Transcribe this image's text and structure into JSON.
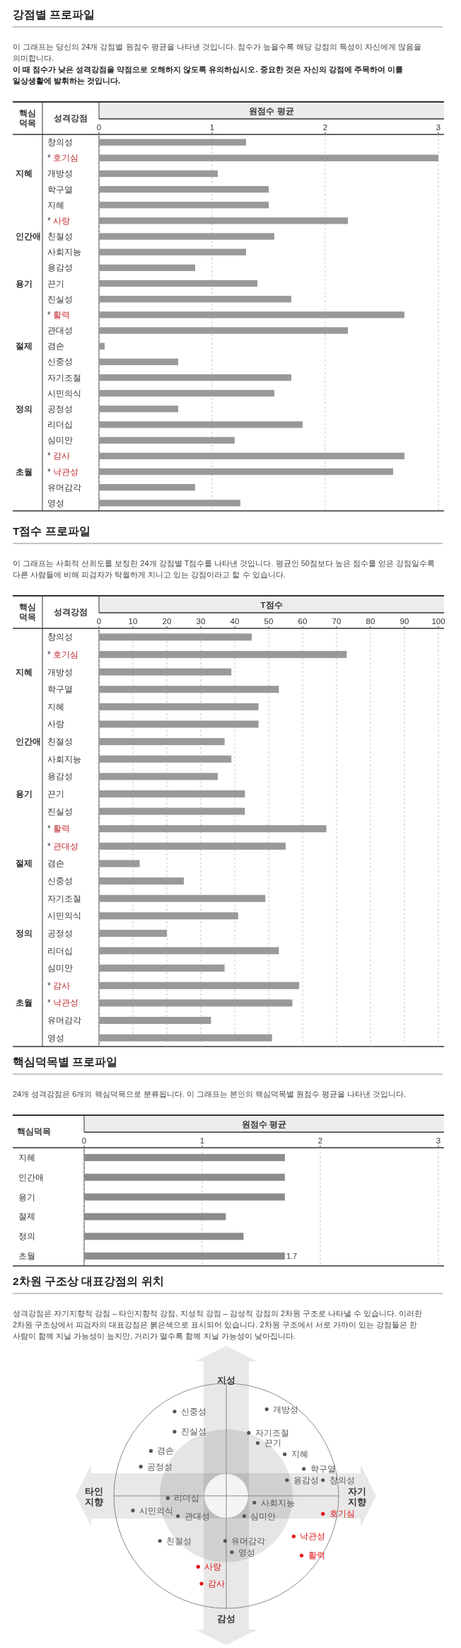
{
  "chart_data": [
    {
      "type": "bar",
      "orientation": "horizontal",
      "title": "강점별 프로파일",
      "subtitle": "이 그래프는 당신의 24개 강점별 원점수 평균을 나타낸 것입니다. 점수가 높을수록 해당 강점의 특성이 자신에게 많음을 의미합니다.",
      "annotations": [
        "이 때 점수가 낮은 성격강점을 약점으로 오해하지 않도록 유의하십시오. 중요한 것은 자신의 강점에 주목하여 이를 일상생활에 발휘하는 것입니다."
      ],
      "xlabel": "원점수 평균",
      "ylabel": "성격강점",
      "y2label": "핵심 덕목",
      "categories": [
        "창의성",
        "* 호기심",
        "개방성",
        "학구열",
        "지혜",
        "* 사랑",
        "친절성",
        "사회지능",
        "용감성",
        "끈기",
        "진실성",
        "* 활력",
        "관대성",
        "겸손",
        "신중성",
        "자기조절",
        "시민의식",
        "공정성",
        "리더십",
        "심미안",
        "* 감사",
        "* 낙관성",
        "유머감각",
        "영성"
      ],
      "y2_categories": [
        null,
        null,
        "지혜",
        null,
        null,
        null,
        "인간애",
        null,
        null,
        "용기",
        null,
        null,
        null,
        "절제",
        null,
        null,
        null,
        "정의",
        null,
        null,
        null,
        "초월",
        null,
        null
      ],
      "series": [
        {
          "color": "#999999",
          "values": [
            1.3,
            3.0,
            1.05,
            1.5,
            1.5,
            2.2,
            1.55,
            1.3,
            0.85,
            1.4,
            1.7,
            2.7,
            2.2,
            0.05,
            0.7,
            1.7,
            1.55,
            0.7,
            1.8,
            1.2,
            2.7,
            2.6,
            0.85,
            1.25
          ]
        }
      ],
      "xlim": [
        0,
        3
      ],
      "xticks": [
        0,
        1,
        2,
        3
      ],
      "grid": "x"
    },
    {
      "type": "bar",
      "orientation": "horizontal",
      "title": "T점수 프로파일",
      "subtitle": "이 그래프는 사회적 선희도를 보정한 24개 강점별 T점수를 나타낸 것입니다. 평균인 50점보다 높은 점수를 얻은 강점일수록 다른 사람들에 비해 피검자가 탁월하게 지니고 있는 강점이라고 할 수 있습니다.",
      "xlabel": "T점수",
      "ylabel": "성격강점",
      "y2label": "핵심 덕목",
      "categories": [
        "창의성",
        "* 호기심",
        "개방성",
        "학구열",
        "지혜",
        "사랑",
        "친절성",
        "사회지능",
        "용감성",
        "끈기",
        "진실성",
        "* 활력",
        "* 관대성",
        "겸손",
        "신중성",
        "자기조절",
        "시민의식",
        "공정성",
        "리더십",
        "심미안",
        "* 감사",
        "* 낙관성",
        "유머감각",
        "영성"
      ],
      "y2_categories": [
        null,
        null,
        "지혜",
        null,
        null,
        null,
        "인간애",
        null,
        null,
        "용기",
        null,
        null,
        null,
        "절제",
        null,
        null,
        null,
        "정의",
        null,
        null,
        null,
        "초월",
        null,
        null
      ],
      "series": [
        {
          "color": "#999999",
          "values": [
            45,
            73,
            39,
            53,
            47,
            47,
            37,
            39,
            35,
            43,
            43,
            67,
            55,
            12,
            25,
            49,
            41,
            20,
            53,
            37,
            59,
            57,
            33,
            51
          ]
        }
      ],
      "xlim": [
        0,
        100
      ],
      "xticks": [
        0,
        10,
        20,
        30,
        40,
        50,
        60,
        70,
        80,
        90,
        100
      ],
      "grid": "x"
    },
    {
      "type": "bar",
      "orientation": "horizontal",
      "title": "핵심덕목별 프로파일",
      "subtitle": "24개 성격강점은 6개의 핵심덕목으로 분류됩니다. 이 그래프는 본인의 핵심덕목별 원점수 평균을 나타낸 것입니다.",
      "xlabel": "원점수 평균",
      "ylabel": "핵심덕목",
      "categories": [
        "지혜",
        "인간애",
        "용기",
        "절제",
        "정의",
        "초월"
      ],
      "series": [
        {
          "color": "#8c8c8c",
          "values": [
            1.7,
            1.7,
            1.7,
            1.2,
            1.35,
            1.7
          ]
        }
      ],
      "value_labels": [
        null,
        null,
        null,
        null,
        null,
        "1.7"
      ],
      "xlim": [
        0,
        3
      ],
      "xticks": [
        0,
        1,
        2,
        3
      ],
      "grid": "x"
    },
    {
      "type": "other",
      "title": "2차원 구조상 대표강점의 위치",
      "subtitle": "성격강점은 자기지향적 강점 – 타인지향적 강점, 지성적 강점 – 감성적 강점의 2차원 구조로 나타낼 수 있습니다. 이러한 2차원 구조상에서 피검자의 대표강점은 붉은색으로 표시되어 있습니다. 2차원 구조에서 서로 가까이 있는 강점들은 한 사람이 함께 지닐 가능성이 높지만, 거리가 멀수록 함께 지닐 가능성이 낮아집니다.",
      "xlabel": "자기 지향",
      "ylabel": "지성",
      "colors": [
        "#555555",
        "#555555",
        "#555555",
        "#555555",
        "#555555",
        "#555555",
        "#555555",
        "#555555",
        "#555555",
        "#555555",
        "#555555",
        "#555555",
        "#555555",
        "#555555",
        "#555555",
        "#555555",
        "#e01010",
        "#e01010",
        "#e01010",
        "#555555",
        "#555555",
        "#555555",
        "#e01010",
        "#e01010"
      ],
      "annotations": [
        "신중성",
        "진실성",
        "겸손",
        "공정성",
        "개방성",
        "자기조절",
        "끈기",
        "지혜",
        "학구열",
        "용감성",
        "창의성",
        "리더십",
        "시민의식",
        "관대성",
        "사회지능",
        "심미안",
        "호기심",
        "낙관성",
        "활력",
        "친절성",
        "유머감각",
        "영성",
        "사랑",
        "감사",
        "타인 지향",
        "감성"
      ]
    }
  ]
}
